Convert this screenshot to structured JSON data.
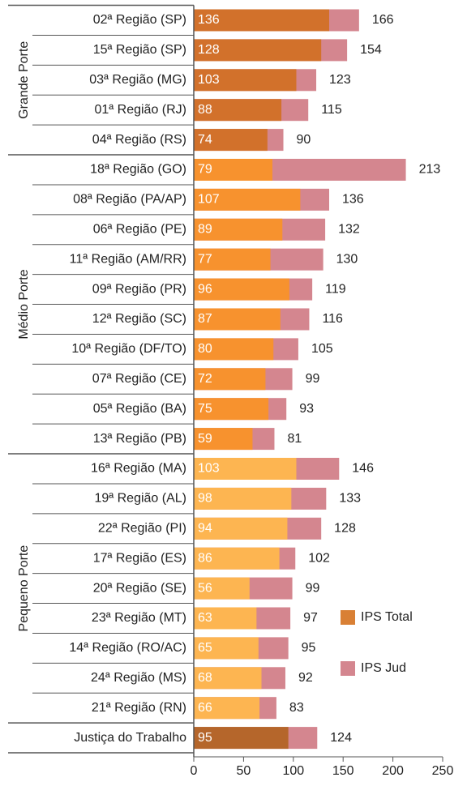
{
  "chart_data": {
    "type": "bar",
    "orientation": "horizontal",
    "groups": [
      {
        "name": "Grande Porte",
        "color": "#d2712b",
        "categories": [
          "02ª Região (SP)",
          "15ª Região (SP)",
          "03ª Região (MG)",
          "01ª Região (RJ)",
          "04ª Região (RS)"
        ]
      },
      {
        "name": "Médio Porte",
        "color": "#f7922e",
        "categories": [
          "18ª Região (GO)",
          "08ª Região (PA/AP)",
          "06ª Região (PE)",
          "11ª Região (AM/RR)",
          "09ª Região (PR)",
          "12ª Região (SC)",
          "10ª Região (DF/TO)",
          "07ª Região (CE)",
          "05ª Região (BA)",
          "13ª Região (PB)"
        ]
      },
      {
        "name": "Pequeno Porte",
        "color": "#fdb551",
        "categories": [
          "16ª Região (MA)",
          "19ª Região (AL)",
          "22ª Região (PI)",
          "17ª Região (ES)",
          "20ª Região (SE)",
          "23ª Região (MT)",
          "14ª Região (RO/AC)",
          "24ª Região (MS)",
          "21ª Região (RN)"
        ]
      },
      {
        "color": "#b5662b",
        "categories": [
          "Justiça do Trabalho"
        ]
      }
    ],
    "series": [
      {
        "name": "IPS Total",
        "color": "#d98035",
        "values": [
          [
            136,
            128,
            103,
            88,
            74
          ],
          [
            79,
            107,
            89,
            77,
            96,
            87,
            80,
            72,
            75,
            59
          ],
          [
            103,
            98,
            94,
            86,
            56,
            63,
            65,
            68,
            66
          ],
          [
            95
          ]
        ]
      },
      {
        "name": "IPS Jud",
        "color": "#d4868f",
        "values": [
          [
            166,
            154,
            123,
            115,
            90
          ],
          [
            213,
            136,
            132,
            130,
            119,
            116,
            105,
            99,
            93,
            81
          ],
          [
            146,
            133,
            128,
            102,
            99,
            97,
            95,
            92,
            83
          ],
          [
            124
          ]
        ]
      }
    ],
    "xlim": [
      0,
      250
    ],
    "xticks": [
      0,
      50,
      100,
      150,
      200,
      250
    ]
  }
}
